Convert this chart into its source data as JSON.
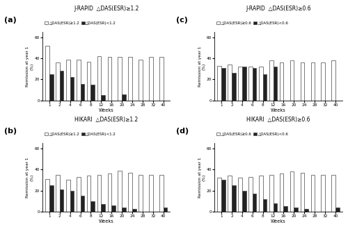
{
  "weeks": [
    1,
    2,
    4,
    6,
    8,
    12,
    16,
    20,
    24,
    28,
    32,
    40
  ],
  "subplots": [
    {
      "label": "(a)",
      "title": "J-RAPID  △DAS(ESR)≥1.2",
      "threshold": "1.2",
      "white_bars": [
        52,
        36,
        39,
        39,
        37,
        42,
        41,
        41,
        41,
        39,
        41,
        41
      ],
      "black_bars": [
        25,
        28,
        22,
        16,
        15,
        5,
        0,
        6,
        0,
        0,
        0,
        0
      ]
    },
    {
      "label": "(b)",
      "title": "HIKARI  △DAS(ESR)≥1.2",
      "threshold": "1.2",
      "white_bars": [
        31,
        35,
        30,
        33,
        34,
        35,
        36,
        39,
        37,
        35,
        35,
        35
      ],
      "black_bars": [
        25,
        21,
        20,
        15,
        10,
        7,
        6,
        4,
        3,
        0,
        0,
        4
      ]
    },
    {
      "label": "(c)",
      "title": "J-RAPID  △DAS(ESR)≥0.6",
      "threshold": "0.6",
      "white_bars": [
        33,
        34,
        32,
        32,
        32,
        38,
        36,
        38,
        36,
        36,
        36,
        38
      ],
      "black_bars": [
        31,
        26,
        32,
        31,
        25,
        32,
        0,
        0,
        0,
        0,
        0,
        0
      ]
    },
    {
      "label": "(d)",
      "title": "HIKARI  △DAS(ESR)≥0.6",
      "threshold": "0.6",
      "white_bars": [
        32,
        34,
        32,
        33,
        34,
        35,
        36,
        38,
        37,
        35,
        35,
        35
      ],
      "black_bars": [
        30,
        25,
        20,
        17,
        12,
        8,
        5,
        4,
        3,
        0,
        0,
        4
      ]
    }
  ],
  "ylim": [
    0,
    65
  ],
  "yticks": [
    0,
    20,
    40,
    60
  ],
  "bar_width": 0.38,
  "white_color": "#ffffff",
  "black_color": "#222222",
  "edge_color": "#444444",
  "bg_color": "#ffffff",
  "xlabel": "Weeks",
  "ylabel": "Remission at year 1\n(%)"
}
